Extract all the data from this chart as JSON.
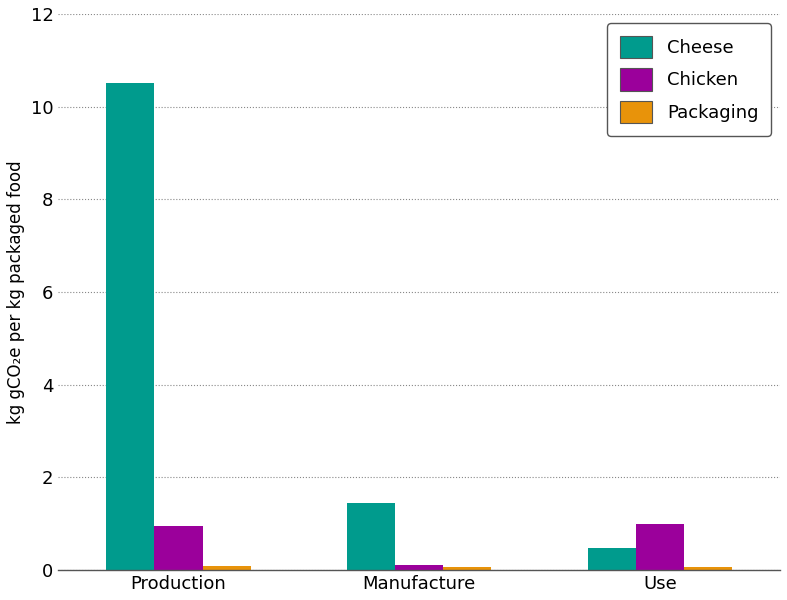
{
  "categories": [
    "Production",
    "Manufacture",
    "Use"
  ],
  "series": {
    "Cheese": [
      10.5,
      1.45,
      0.48
    ],
    "Chicken": [
      0.95,
      0.12,
      1.0
    ],
    "Packaging": [
      0.1,
      0.07,
      0.07
    ]
  },
  "colors": {
    "Cheese": "#009B8D",
    "Chicken": "#9B009B",
    "Packaging": "#E8930A"
  },
  "ylabel": "kg gCO₂e per kg packaged food",
  "ylim": [
    0,
    12
  ],
  "yticks": [
    0,
    2,
    4,
    6,
    8,
    10,
    12
  ],
  "bar_width": 0.2,
  "legend_labels": [
    "Cheese",
    "Chicken",
    "Packaging"
  ],
  "background_color": "#ffffff",
  "grid_color": "#888888",
  "spine_color": "#555555"
}
